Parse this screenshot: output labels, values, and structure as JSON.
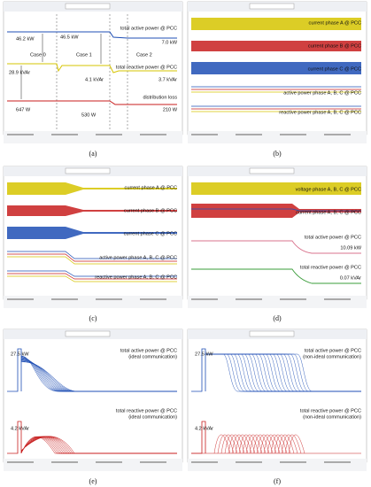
{
  "panels": [
    {
      "caption": "(a)",
      "annotations": [
        "46.2 kW",
        "Case 0",
        "46.5 kW",
        "Case 1",
        "Case 2",
        "total active power @ PCC",
        "7.0 kW",
        "28.9 kVAr",
        "4.1 kVAr",
        "3.7 kVAr",
        "total reactive power @ PCC",
        "647 W",
        "530 W",
        "210 W",
        "distribution loss"
      ]
    },
    {
      "caption": "(b)",
      "annotations": [
        "current phase A @ PCC",
        "current phase B @ PCC",
        "current phase C @ PCC",
        "active power phase A, B, C @ PCC",
        "reactive power phase A, B, C @ PCC"
      ]
    },
    {
      "caption": "(c)",
      "annotations": [
        "current phase A @ PCC",
        "current phase B @ PCC",
        "current phase C @ PCC",
        "active power phase A, B, C @ PCC",
        "reactive power phase A, B, C @ PCC"
      ]
    },
    {
      "caption": "(d)",
      "annotations": [
        "voltage phase A, B, C @ PCC",
        "current phase A, B, C @ PCC",
        "total active power @ PCC",
        "10.09 kW",
        "total reactive power @ PCC",
        "0.07 kVAr"
      ]
    },
    {
      "caption": "(e)",
      "annotations": [
        "27.5 kW",
        "total active power @ PCC",
        "(ideal communication)",
        "4.2 kVAr",
        "total reactive power @ PCC",
        "(ideal communication)"
      ]
    },
    {
      "caption": "(f)",
      "annotations": [
        "27.5 kW",
        "total active power @ PCC",
        "(non-ideal communication)",
        "4.2 kVAr",
        "total reactive power @ PCC",
        "(non-ideal communication)"
      ]
    }
  ]
}
